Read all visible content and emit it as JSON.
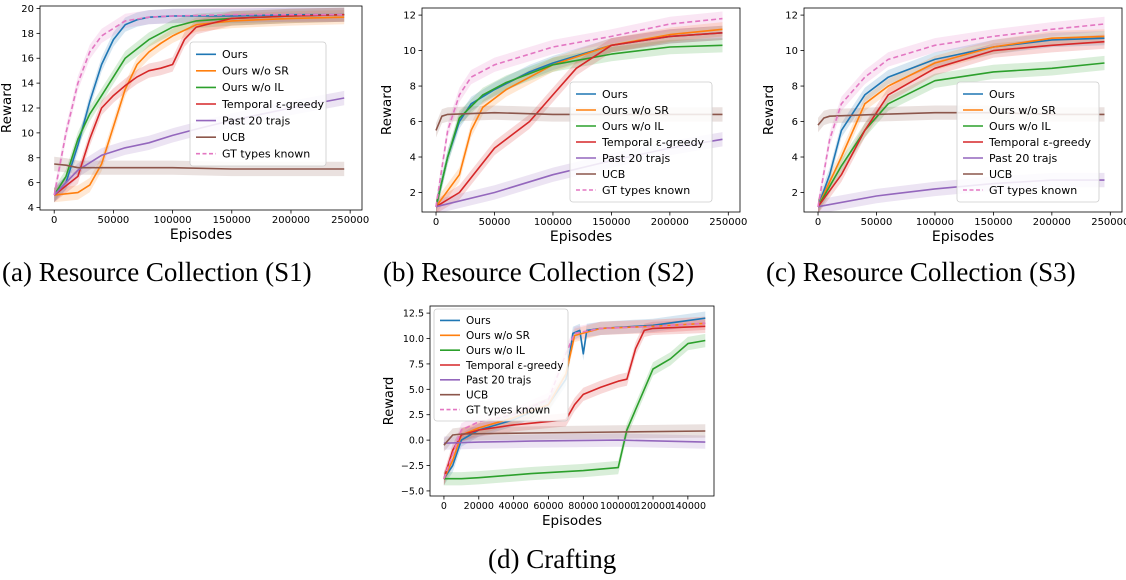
{
  "colors": {
    "ours": "#1f77b4",
    "ours_wo_sr": "#ff7f0e",
    "ours_wo_il": "#2ca02c",
    "temporal": "#d62728",
    "past20": "#9467bd",
    "ucb": "#8c564b",
    "gt": "#e377c2"
  },
  "chart_data": [
    {
      "id": "a",
      "type": "line",
      "title": "",
      "caption": "(a) Resource Collection (S1)",
      "xlabel": "Episodes",
      "ylabel": "Reward",
      "xlim": [
        -12000,
        260000
      ],
      "ylim": [
        3.8,
        20.2
      ],
      "xticks": [
        0,
        50000,
        100000,
        150000,
        200000,
        250000
      ],
      "yticks": [
        4,
        6,
        8,
        10,
        12,
        14,
        16,
        18,
        20
      ],
      "legend_position": "center-right",
      "series": [
        {
          "name": "Ours",
          "color": "#1f77b4",
          "dash": false,
          "x": [
            0,
            10000,
            20000,
            30000,
            40000,
            50000,
            60000,
            70000,
            80000,
            100000,
            150000,
            200000,
            245000
          ],
          "y": [
            5.0,
            6.0,
            9.0,
            12.5,
            15.5,
            17.5,
            18.7,
            19.1,
            19.3,
            19.4,
            19.4,
            19.5,
            19.5
          ]
        },
        {
          "name": "Ours w/o SR",
          "color": "#ff7f0e",
          "dash": false,
          "x": [
            0,
            20000,
            30000,
            40000,
            50000,
            60000,
            70000,
            80000,
            90000,
            100000,
            120000,
            150000,
            200000,
            245000
          ],
          "y": [
            5.0,
            5.2,
            5.8,
            7.5,
            10.5,
            13.5,
            15.5,
            16.5,
            17.2,
            17.8,
            18.7,
            19.0,
            19.2,
            19.3
          ]
        },
        {
          "name": "Ours w/o IL",
          "color": "#2ca02c",
          "dash": false,
          "x": [
            0,
            10000,
            20000,
            30000,
            40000,
            50000,
            60000,
            80000,
            100000,
            120000,
            150000,
            200000,
            245000
          ],
          "y": [
            5.0,
            6.5,
            9.5,
            11.5,
            13.0,
            14.5,
            16.0,
            17.5,
            18.5,
            19.0,
            19.2,
            19.4,
            19.5
          ]
        },
        {
          "name": "Temporal ε-greedy",
          "color": "#d62728",
          "dash": false,
          "x": [
            0,
            20000,
            30000,
            40000,
            50000,
            60000,
            70000,
            80000,
            90000,
            100000,
            110000,
            120000,
            150000,
            200000,
            245000
          ],
          "y": [
            5.0,
            6.5,
            9.5,
            12.0,
            13.0,
            13.8,
            14.5,
            15.0,
            15.2,
            15.5,
            17.5,
            18.5,
            19.2,
            19.4,
            19.5
          ]
        },
        {
          "name": "Past 20 trajs",
          "color": "#9467bd",
          "dash": false,
          "x": [
            0,
            20000,
            40000,
            60000,
            80000,
            100000,
            120000,
            150000,
            200000,
            245000
          ],
          "y": [
            5.0,
            7.0,
            8.2,
            8.8,
            9.2,
            9.8,
            10.3,
            11.0,
            12.0,
            12.8
          ]
        },
        {
          "name": "UCB",
          "color": "#8c564b",
          "dash": false,
          "x": [
            0,
            10000,
            20000,
            50000,
            100000,
            150000,
            200000,
            245000
          ],
          "y": [
            7.5,
            7.4,
            7.2,
            7.2,
            7.2,
            7.1,
            7.1,
            7.1
          ]
        },
        {
          "name": "GT types known",
          "color": "#e377c2",
          "dash": true,
          "x": [
            0,
            10000,
            20000,
            30000,
            40000,
            60000,
            80000,
            100000,
            150000,
            200000,
            245000
          ],
          "y": [
            5.0,
            10.0,
            14.0,
            16.5,
            17.8,
            19.0,
            19.3,
            19.4,
            19.5,
            19.5,
            19.5
          ]
        }
      ]
    },
    {
      "id": "b",
      "type": "line",
      "title": "",
      "caption": "(b) Resource Collection (S2)",
      "xlabel": "Episodes",
      "ylabel": "Reward",
      "xlim": [
        -12000,
        260000
      ],
      "ylim": [
        0.9,
        12.4
      ],
      "xticks": [
        0,
        50000,
        100000,
        150000,
        200000,
        250000
      ],
      "yticks": [
        2,
        4,
        6,
        8,
        10,
        12
      ],
      "legend_position": "lower-right",
      "series": [
        {
          "name": "Ours",
          "color": "#1f77b4",
          "dash": false,
          "x": [
            0,
            10000,
            20000,
            30000,
            50000,
            80000,
            100000,
            150000,
            200000,
            245000
          ],
          "y": [
            1.2,
            4.0,
            6.0,
            7.0,
            7.8,
            8.8,
            9.3,
            10.3,
            10.8,
            11.0
          ]
        },
        {
          "name": "Ours w/o SR",
          "color": "#ff7f0e",
          "dash": false,
          "x": [
            0,
            20000,
            30000,
            40000,
            60000,
            100000,
            150000,
            200000,
            245000
          ],
          "y": [
            1.2,
            3.0,
            5.5,
            6.8,
            7.8,
            9.2,
            10.3,
            10.9,
            11.2
          ]
        },
        {
          "name": "Ours w/o IL",
          "color": "#2ca02c",
          "dash": false,
          "x": [
            0,
            10000,
            20000,
            40000,
            60000,
            100000,
            150000,
            200000,
            245000
          ],
          "y": [
            1.2,
            4.0,
            6.2,
            7.5,
            8.2,
            9.2,
            9.8,
            10.2,
            10.3
          ]
        },
        {
          "name": "Temporal ε-greedy",
          "color": "#d62728",
          "dash": false,
          "x": [
            0,
            20000,
            50000,
            80000,
            100000,
            120000,
            150000,
            200000,
            245000
          ],
          "y": [
            1.2,
            2.0,
            4.5,
            6.0,
            7.5,
            9.0,
            10.3,
            10.8,
            11.0
          ]
        },
        {
          "name": "Past 20 trajs",
          "color": "#9467bd",
          "dash": false,
          "x": [
            0,
            50000,
            100000,
            150000,
            200000,
            245000
          ],
          "y": [
            1.2,
            2.0,
            3.0,
            3.8,
            4.5,
            5.0
          ]
        },
        {
          "name": "UCB",
          "color": "#8c564b",
          "dash": false,
          "x": [
            0,
            5000,
            10000,
            50000,
            100000,
            150000,
            200000,
            245000
          ],
          "y": [
            5.5,
            6.3,
            6.4,
            6.5,
            6.4,
            6.4,
            6.4,
            6.4
          ]
        },
        {
          "name": "GT types known",
          "color": "#e377c2",
          "dash": true,
          "x": [
            0,
            10000,
            20000,
            30000,
            50000,
            100000,
            150000,
            200000,
            245000
          ],
          "y": [
            1.2,
            5.5,
            7.5,
            8.5,
            9.2,
            10.2,
            10.8,
            11.5,
            11.8
          ]
        }
      ]
    },
    {
      "id": "c",
      "type": "line",
      "title": "",
      "caption": "(c) Resource Collection (S3)",
      "xlabel": "Episodes",
      "ylabel": "Reward",
      "xlim": [
        -12000,
        260000
      ],
      "ylim": [
        0.9,
        12.4
      ],
      "xticks": [
        0,
        50000,
        100000,
        150000,
        200000,
        250000
      ],
      "yticks": [
        2,
        4,
        6,
        8,
        10,
        12
      ],
      "legend_position": "lower-right",
      "series": [
        {
          "name": "Ours",
          "color": "#1f77b4",
          "dash": false,
          "x": [
            0,
            10000,
            20000,
            40000,
            60000,
            100000,
            150000,
            200000,
            245000
          ],
          "y": [
            1.2,
            3.0,
            5.5,
            7.5,
            8.5,
            9.5,
            10.2,
            10.6,
            10.7
          ]
        },
        {
          "name": "Ours w/o SR",
          "color": "#ff7f0e",
          "dash": false,
          "x": [
            0,
            20000,
            40000,
            60000,
            100000,
            150000,
            200000,
            245000
          ],
          "y": [
            1.2,
            4.0,
            7.0,
            8.0,
            9.3,
            10.2,
            10.7,
            10.8
          ]
        },
        {
          "name": "Ours w/o IL",
          "color": "#2ca02c",
          "dash": false,
          "x": [
            0,
            20000,
            40000,
            60000,
            100000,
            150000,
            200000,
            245000
          ],
          "y": [
            1.2,
            3.5,
            5.5,
            7.0,
            8.3,
            8.8,
            9.0,
            9.3
          ]
        },
        {
          "name": "Temporal ε-greedy",
          "color": "#d62728",
          "dash": false,
          "x": [
            0,
            20000,
            40000,
            60000,
            100000,
            150000,
            200000,
            245000
          ],
          "y": [
            1.2,
            3.0,
            5.5,
            7.5,
            9.0,
            10.0,
            10.3,
            10.5
          ]
        },
        {
          "name": "Past 20 trajs",
          "color": "#9467bd",
          "dash": false,
          "x": [
            0,
            50000,
            100000,
            150000,
            200000,
            245000
          ],
          "y": [
            1.2,
            1.8,
            2.2,
            2.5,
            2.7,
            2.7
          ]
        },
        {
          "name": "UCB",
          "color": "#8c564b",
          "dash": false,
          "x": [
            0,
            5000,
            10000,
            50000,
            100000,
            150000,
            200000,
            245000
          ],
          "y": [
            5.8,
            6.2,
            6.3,
            6.4,
            6.5,
            6.5,
            6.4,
            6.4
          ]
        },
        {
          "name": "GT types known",
          "color": "#e377c2",
          "dash": true,
          "x": [
            0,
            10000,
            20000,
            40000,
            60000,
            100000,
            150000,
            200000,
            245000
          ],
          "y": [
            1.2,
            5.0,
            7.0,
            8.5,
            9.5,
            10.3,
            10.8,
            11.2,
            11.5
          ]
        }
      ]
    },
    {
      "id": "d",
      "type": "line",
      "title": "",
      "caption": "(d) Crafting",
      "xlabel": "Episodes",
      "ylabel": "Reward",
      "xlim": [
        -8000,
        155000
      ],
      "ylim": [
        -5.5,
        13.2
      ],
      "xticks": [
        0,
        20000,
        40000,
        60000,
        80000,
        100000,
        120000,
        140000
      ],
      "yticks": [
        -5.0,
        -2.5,
        0.0,
        2.5,
        5.0,
        7.5,
        10.0,
        12.5
      ],
      "legend_position": "upper-left",
      "series": [
        {
          "name": "Ours",
          "color": "#1f77b4",
          "dash": false,
          "x": [
            0,
            5000,
            10000,
            20000,
            40000,
            60000,
            70000,
            74000,
            78000,
            80000,
            82000,
            90000,
            120000,
            150000
          ],
          "y": [
            -3.8,
            -2.5,
            0.0,
            1.0,
            2.0,
            3.5,
            6.0,
            10.5,
            10.8,
            8.5,
            10.8,
            11.0,
            11.3,
            12.0
          ]
        },
        {
          "name": "Ours w/o SR",
          "color": "#ff7f0e",
          "dash": false,
          "x": [
            0,
            5000,
            10000,
            20000,
            40000,
            60000,
            70000,
            75000,
            90000,
            120000,
            150000
          ],
          "y": [
            -3.8,
            -2.0,
            0.5,
            1.2,
            2.2,
            3.5,
            6.5,
            10.3,
            11.0,
            11.2,
            11.5
          ]
        },
        {
          "name": "Ours w/o IL",
          "color": "#2ca02c",
          "dash": false,
          "x": [
            0,
            10000,
            20000,
            50000,
            80000,
            100000,
            105000,
            110000,
            115000,
            120000,
            130000,
            140000,
            150000
          ],
          "y": [
            -3.8,
            -3.8,
            -3.7,
            -3.3,
            -3.0,
            -2.7,
            1.0,
            3.0,
            5.0,
            7.0,
            8.0,
            9.5,
            9.8
          ]
        },
        {
          "name": "Temporal ε-greedy",
          "color": "#d62728",
          "dash": false,
          "x": [
            0,
            5000,
            10000,
            20000,
            40000,
            70000,
            75000,
            80000,
            90000,
            100000,
            105000,
            110000,
            115000,
            120000,
            150000
          ],
          "y": [
            -3.8,
            -1.0,
            0.5,
            1.0,
            1.5,
            2.0,
            3.5,
            4.5,
            5.2,
            5.8,
            6.0,
            9.0,
            10.8,
            11.0,
            11.2
          ]
        },
        {
          "name": "Past 20 trajs",
          "color": "#9467bd",
          "dash": false,
          "x": [
            0,
            20000,
            50000,
            100000,
            150000
          ],
          "y": [
            -0.3,
            -0.2,
            -0.1,
            0.0,
            -0.2
          ]
        },
        {
          "name": "UCB",
          "color": "#8c564b",
          "dash": false,
          "x": [
            0,
            5000,
            10000,
            50000,
            100000,
            150000
          ],
          "y": [
            -0.5,
            0.5,
            0.6,
            0.7,
            0.8,
            0.9
          ]
        },
        {
          "name": "GT types known",
          "color": "#e377c2",
          "dash": true,
          "x": [
            0,
            10000,
            20000,
            40000,
            60000,
            70000,
            75000,
            90000,
            120000,
            150000
          ],
          "y": [
            -3.8,
            1.0,
            1.8,
            2.5,
            4.0,
            8.5,
            10.5,
            11.0,
            11.2,
            11.5
          ]
        }
      ]
    }
  ]
}
